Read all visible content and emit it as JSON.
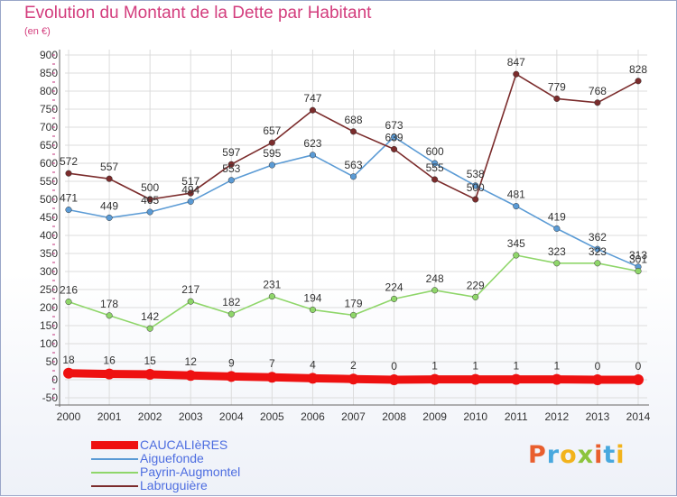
{
  "title": "Evolution du Montant de la Dette par Habitant",
  "subtitle": "(en €)",
  "logo": {
    "letters": [
      "P",
      "r",
      "o",
      "x",
      "i",
      "t",
      "i"
    ],
    "colors": [
      "#e95e2d",
      "#48a8de",
      "#f2b31c",
      "#8cc43d",
      "#e95e2d",
      "#48a8de",
      "#f2b31c"
    ]
  },
  "chart_data": {
    "type": "line",
    "x": [
      "2000",
      "2001",
      "2002",
      "2003",
      "2004",
      "2005",
      "2006",
      "2007",
      "2008",
      "2009",
      "2010",
      "2011",
      "2012",
      "2013",
      "2014"
    ],
    "yticks": [
      "900",
      "850",
      "800",
      "750",
      "700",
      "650",
      "600",
      "550",
      "500",
      "450",
      "400",
      "350",
      "300",
      "250",
      "200",
      "150",
      "100",
      "50",
      "0",
      "-50"
    ],
    "ylim": [
      -50,
      900
    ],
    "grid": true,
    "legend_position": "bottom-left",
    "series": [
      {
        "name": "CAUCALIèRES",
        "color": "#ee1111",
        "values": [
          18,
          16,
          15,
          12,
          9,
          7,
          4,
          2,
          0,
          1,
          1,
          1,
          1,
          0,
          0
        ],
        "labels": [
          "18",
          "16",
          "15",
          "12",
          "9",
          "7",
          "4",
          "2",
          "0",
          "1",
          "1",
          "1",
          "1",
          "0",
          "0"
        ]
      },
      {
        "name": "Aiguefonde",
        "color": "#5b9bd5",
        "values": [
          471,
          449,
          465,
          494,
          553,
          595,
          623,
          563,
          673,
          600,
          538,
          481,
          419,
          362,
          313
        ],
        "labels": [
          "471",
          "449",
          "465",
          "494",
          "553",
          "595",
          "623",
          "563",
          "673",
          "600",
          "538",
          "481",
          "419",
          "362",
          "313"
        ]
      },
      {
        "name": "Payrin-Augmontel",
        "color": "#8fd66a",
        "values": [
          216,
          178,
          142,
          217,
          182,
          231,
          194,
          179,
          224,
          248,
          229,
          345,
          323,
          323,
          301
        ],
        "labels": [
          "216",
          "178",
          "142",
          "217",
          "182",
          "231",
          "194",
          "179",
          "224",
          "248",
          "229",
          "345",
          "323",
          "323",
          "301"
        ]
      },
      {
        "name": "Labruguière",
        "color": "#7b2c2c",
        "values": [
          572,
          557,
          500,
          517,
          597,
          657,
          747,
          688,
          639,
          555,
          500,
          847,
          779,
          768,
          828
        ],
        "labels": [
          "572",
          "557",
          "500",
          "517",
          "597",
          "657",
          "747",
          "688",
          "639",
          "555",
          "500",
          "847",
          "779",
          "768",
          "828"
        ]
      }
    ]
  }
}
